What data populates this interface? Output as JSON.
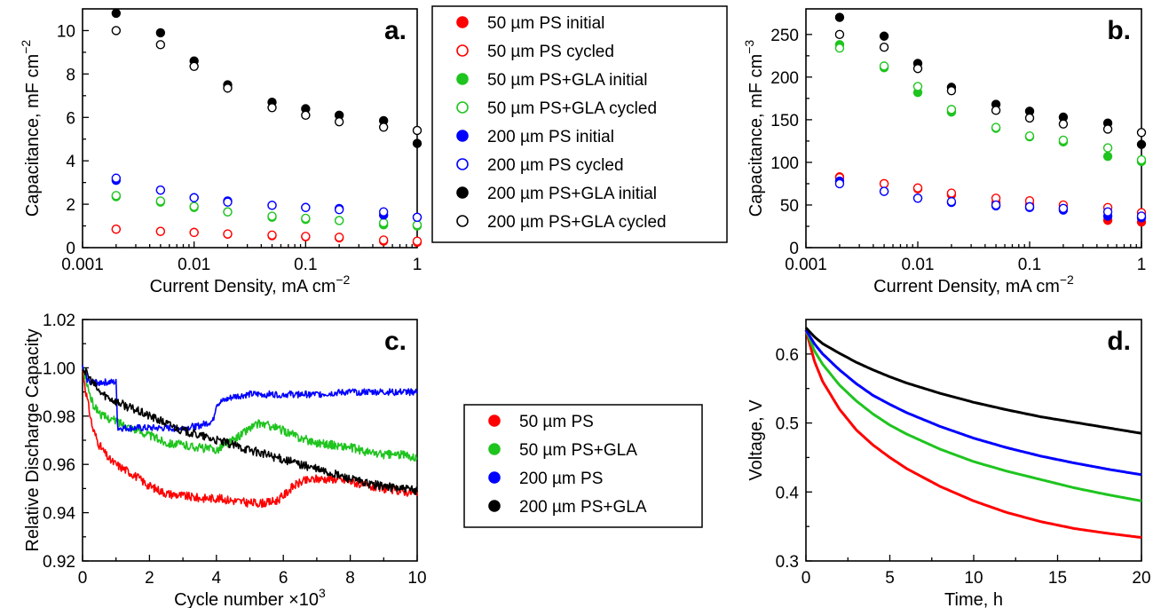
{
  "colors": {
    "red": "#ff0000",
    "green": "#1fc41f",
    "blue": "#0000ff",
    "black": "#000000"
  },
  "chart_data": [
    {
      "id": "a",
      "type": "scatter",
      "panel_label": "a.",
      "xlabel": "Current Density, mA cm",
      "xlabel_sup": "−2",
      "ylabel": "Capacitance, mF cm",
      "ylabel_sup": "−2",
      "xscale": "log",
      "xlim": [
        0.001,
        1
      ],
      "ylim": [
        0,
        11
      ],
      "xticks": [
        0.001,
        0.01,
        0.1,
        1
      ],
      "xtick_labels": [
        "0.001",
        "0.01",
        "0.1",
        "1"
      ],
      "yticks": [
        0,
        2,
        4,
        6,
        8,
        10
      ],
      "ytick_labels": [
        "0",
        "2",
        "4",
        "6",
        "8",
        "10"
      ],
      "x": [
        0.002,
        0.005,
        0.01,
        0.02,
        0.05,
        0.1,
        0.2,
        0.5,
        1
      ],
      "series": [
        {
          "name": "50 µm PS initial",
          "color": "red",
          "filled": true,
          "values": [
            0.85,
            0.75,
            0.7,
            0.62,
            0.55,
            0.5,
            0.45,
            0.3,
            0.25
          ]
        },
        {
          "name": "50 µm PS cycled",
          "color": "red",
          "filled": false,
          "values": [
            0.85,
            0.75,
            0.7,
            0.63,
            0.58,
            0.52,
            0.48,
            0.35,
            0.3
          ]
        },
        {
          "name": "50 µm PS+GLA initial",
          "color": "green",
          "filled": true,
          "values": [
            2.35,
            2.1,
            1.85,
            1.65,
            1.4,
            1.3,
            1.25,
            1.05,
            1.0
          ]
        },
        {
          "name": "50 µm PS+GLA cycled",
          "color": "green",
          "filled": false,
          "values": [
            2.4,
            2.15,
            1.9,
            1.65,
            1.45,
            1.35,
            1.25,
            1.15,
            1.05
          ]
        },
        {
          "name": "200 µm PS initial",
          "color": "blue",
          "filled": true,
          "values": [
            3.1,
            2.65,
            2.3,
            2.15,
            1.95,
            1.85,
            1.8,
            1.5,
            1.4
          ]
        },
        {
          "name": "200 µm PS cycled",
          "color": "blue",
          "filled": false,
          "values": [
            3.2,
            2.65,
            2.3,
            2.1,
            1.95,
            1.85,
            1.75,
            1.65,
            1.4
          ]
        },
        {
          "name": "200 µm PS+GLA initial",
          "color": "black",
          "filled": true,
          "values": [
            10.8,
            9.9,
            8.6,
            7.5,
            6.7,
            6.4,
            6.1,
            5.85,
            4.8
          ]
        },
        {
          "name": "200 µm PS+GLA cycled",
          "color": "black",
          "filled": false,
          "values": [
            10.0,
            9.35,
            8.35,
            7.35,
            6.45,
            6.1,
            5.8,
            5.55,
            5.4
          ]
        }
      ]
    },
    {
      "id": "b",
      "type": "scatter",
      "panel_label": "b.",
      "xlabel": "Current Density, mA cm",
      "xlabel_sup": "−2",
      "ylabel": "Capacitance, mF cm",
      "ylabel_sup": "−3",
      "xscale": "log",
      "xlim": [
        0.001,
        1
      ],
      "ylim": [
        0,
        280
      ],
      "xticks": [
        0.001,
        0.01,
        0.1,
        1
      ],
      "xtick_labels": [
        "0.001",
        "0.01",
        "0.1",
        "1"
      ],
      "yticks": [
        0,
        50,
        100,
        150,
        200,
        250
      ],
      "ytick_labels": [
        "0",
        "50",
        "100",
        "150",
        "200",
        "250"
      ],
      "x": [
        0.002,
        0.005,
        0.01,
        0.02,
        0.05,
        0.1,
        0.2,
        0.5,
        1
      ],
      "series": [
        {
          "name": "50 µm PS initial",
          "color": "red",
          "filled": true,
          "values": [
            83,
            75,
            69,
            62,
            53,
            50,
            46,
            32,
            30
          ]
        },
        {
          "name": "50 µm PS cycled",
          "color": "red",
          "filled": false,
          "values": [
            82,
            75,
            70,
            64,
            58,
            55,
            50,
            47,
            41
          ]
        },
        {
          "name": "50 µm PS+GLA initial",
          "color": "green",
          "filled": true,
          "values": [
            238,
            211,
            182,
            159,
            140,
            130,
            124,
            107,
            101
          ]
        },
        {
          "name": "50 µm PS+GLA cycled",
          "color": "green",
          "filled": false,
          "values": [
            234,
            213,
            189,
            162,
            141,
            131,
            126,
            117,
            103
          ]
        },
        {
          "name": "200 µm PS initial",
          "color": "blue",
          "filled": true,
          "values": [
            78,
            66,
            58,
            53,
            49,
            47,
            44,
            37,
            35
          ]
        },
        {
          "name": "200 µm PS cycled",
          "color": "blue",
          "filled": false,
          "values": [
            75,
            66,
            58,
            54,
            50,
            48,
            46,
            42,
            37
          ]
        },
        {
          "name": "200 µm PS+GLA initial",
          "color": "black",
          "filled": true,
          "values": [
            270,
            248,
            216,
            188,
            168,
            160,
            153,
            146,
            121
          ]
        },
        {
          "name": "200 µm PS+GLA cycled",
          "color": "black",
          "filled": false,
          "values": [
            250,
            235,
            210,
            184,
            161,
            152,
            145,
            139,
            135
          ]
        }
      ]
    },
    {
      "id": "c",
      "type": "line",
      "panel_label": "c.",
      "xlabel": "Cycle number ×10",
      "xlabel_sup": "3",
      "ylabel": "Relative Discharge Capacity",
      "ylabel_sup": "",
      "xscale": "linear",
      "xlim": [
        0,
        10
      ],
      "ylim": [
        0.92,
        1.02
      ],
      "xticks": [
        0,
        2,
        4,
        6,
        8,
        10
      ],
      "xtick_labels": [
        "0",
        "2",
        "4",
        "6",
        "8",
        "10"
      ],
      "yticks": [
        0.92,
        0.94,
        0.96,
        0.98,
        1.0,
        1.02
      ],
      "ytick_labels": [
        "0.92",
        "0.94",
        "0.96",
        "0.98",
        "1.00",
        "1.02"
      ],
      "series": [
        {
          "name": "50 µm PS",
          "color": "red",
          "noise": 0.0018,
          "x": [
            0,
            0.1,
            0.3,
            0.5,
            0.8,
            1.0,
            1.5,
            2.0,
            2.5,
            3.0,
            3.5,
            4.0,
            4.5,
            5.0,
            5.5,
            5.8,
            6.0,
            6.3,
            6.6,
            7.0,
            7.5,
            8.0,
            8.5,
            9.0,
            9.5,
            10.0
          ],
          "values": [
            1.0,
            0.99,
            0.975,
            0.968,
            0.962,
            0.96,
            0.956,
            0.951,
            0.948,
            0.947,
            0.946,
            0.946,
            0.945,
            0.944,
            0.944,
            0.945,
            0.947,
            0.951,
            0.953,
            0.954,
            0.954,
            0.953,
            0.951,
            0.95,
            0.949,
            0.948
          ]
        },
        {
          "name": "50 µm PS+GLA",
          "color": "green",
          "noise": 0.0018,
          "x": [
            0,
            0.3,
            0.6,
            1.0,
            1.5,
            2.0,
            2.5,
            3.0,
            3.5,
            4.0,
            4.5,
            5.0,
            5.3,
            5.6,
            6.0,
            6.5,
            7.0,
            7.5,
            8.0,
            8.5,
            9.0,
            9.5,
            10.0
          ],
          "values": [
            1.0,
            0.985,
            0.98,
            0.978,
            0.975,
            0.972,
            0.969,
            0.968,
            0.967,
            0.966,
            0.97,
            0.975,
            0.977,
            0.976,
            0.974,
            0.971,
            0.969,
            0.968,
            0.967,
            0.965,
            0.964,
            0.964,
            0.963
          ]
        },
        {
          "name": "200 µm PS",
          "color": "blue",
          "noise": 0.0014,
          "step": true,
          "x": [
            0,
            0.15,
            0.3,
            0.5,
            1.0,
            1.05,
            1.5,
            2.0,
            2.5,
            3.0,
            3.5,
            3.9,
            4.0,
            4.5,
            5.0,
            6.0,
            7.0,
            8.0,
            9.0,
            10.0
          ],
          "values": [
            1.0,
            0.995,
            0.994,
            0.994,
            0.994,
            0.975,
            0.975,
            0.975,
            0.975,
            0.975,
            0.976,
            0.978,
            0.985,
            0.988,
            0.989,
            0.989,
            0.989,
            0.99,
            0.99,
            0.99
          ]
        },
        {
          "name": "200 µm PS+GLA",
          "color": "black",
          "noise": 0.0018,
          "x": [
            0,
            0.5,
            1.0,
            1.5,
            2.0,
            2.5,
            3.0,
            3.5,
            4.0,
            4.5,
            5.0,
            5.5,
            6.0,
            6.5,
            7.0,
            7.5,
            8.0,
            8.5,
            9.0,
            9.5,
            10.0
          ],
          "values": [
            1.0,
            0.99,
            0.986,
            0.983,
            0.98,
            0.977,
            0.974,
            0.972,
            0.97,
            0.968,
            0.966,
            0.964,
            0.962,
            0.96,
            0.958,
            0.956,
            0.954,
            0.952,
            0.951,
            0.95,
            0.949
          ]
        }
      ]
    },
    {
      "id": "d",
      "type": "line",
      "panel_label": "d.",
      "xlabel": "Time, h",
      "xlabel_sup": "",
      "ylabel": "Voltage, V",
      "ylabel_sup": "",
      "xscale": "linear",
      "xlim": [
        0,
        20
      ],
      "ylim": [
        0.3,
        0.65
      ],
      "xticks": [
        0,
        5,
        10,
        15,
        20
      ],
      "xtick_labels": [
        "0",
        "5",
        "10",
        "15",
        "20"
      ],
      "yticks": [
        0.3,
        0.4,
        0.5,
        0.6
      ],
      "ytick_labels": [
        "0.3",
        "0.4",
        "0.5",
        "0.6"
      ],
      "series": [
        {
          "name": "50 µm PS",
          "color": "red",
          "x": [
            0,
            0.5,
            1,
            2,
            3,
            4,
            5,
            6,
            8,
            10,
            12,
            14,
            16,
            18,
            20
          ],
          "values": [
            0.635,
            0.59,
            0.56,
            0.52,
            0.49,
            0.468,
            0.45,
            0.434,
            0.408,
            0.387,
            0.37,
            0.357,
            0.347,
            0.34,
            0.334
          ]
        },
        {
          "name": "50 µm PS+GLA",
          "color": "green",
          "x": [
            0,
            0.5,
            1,
            2,
            3,
            4,
            5,
            6,
            8,
            10,
            12,
            14,
            16,
            18,
            20
          ],
          "values": [
            0.635,
            0.605,
            0.585,
            0.555,
            0.532,
            0.513,
            0.497,
            0.484,
            0.462,
            0.444,
            0.43,
            0.418,
            0.406,
            0.396,
            0.387
          ]
        },
        {
          "name": "200 µm PS",
          "color": "blue",
          "x": [
            0,
            0.5,
            1,
            2,
            3,
            4,
            5,
            6,
            8,
            10,
            12,
            14,
            16,
            18,
            20
          ],
          "values": [
            0.635,
            0.615,
            0.6,
            0.577,
            0.557,
            0.54,
            0.527,
            0.515,
            0.495,
            0.478,
            0.464,
            0.452,
            0.442,
            0.433,
            0.425
          ]
        },
        {
          "name": "200 µm PS+GLA",
          "color": "black",
          "x": [
            0,
            0.5,
            1,
            2,
            3,
            4,
            5,
            6,
            8,
            10,
            12,
            14,
            16,
            18,
            20
          ],
          "values": [
            0.638,
            0.625,
            0.615,
            0.601,
            0.588,
            0.577,
            0.567,
            0.558,
            0.543,
            0.53,
            0.519,
            0.509,
            0.501,
            0.493,
            0.485
          ]
        }
      ]
    }
  ],
  "legend_top": [
    {
      "label": "50 µm PS initial",
      "color": "red",
      "filled": true
    },
    {
      "label": "50 µm PS cycled",
      "color": "red",
      "filled": false
    },
    {
      "label": "50 µm PS+GLA initial",
      "color": "green",
      "filled": true
    },
    {
      "label": "50 µm PS+GLA cycled",
      "color": "green",
      "filled": false
    },
    {
      "label": "200 µm PS initial",
      "color": "blue",
      "filled": true
    },
    {
      "label": "200 µm PS cycled",
      "color": "blue",
      "filled": false
    },
    {
      "label": "200 µm PS+GLA initial",
      "color": "black",
      "filled": true
    },
    {
      "label": "200 µm PS+GLA cycled",
      "color": "black",
      "filled": false
    }
  ],
  "legend_bottom": [
    {
      "label": "50 µm PS",
      "color": "red",
      "filled": true
    },
    {
      "label": "50 µm PS+GLA",
      "color": "green",
      "filled": true
    },
    {
      "label": "200 µm PS",
      "color": "blue",
      "filled": true
    },
    {
      "label": "200 µm PS+GLA",
      "color": "black",
      "filled": true
    }
  ]
}
